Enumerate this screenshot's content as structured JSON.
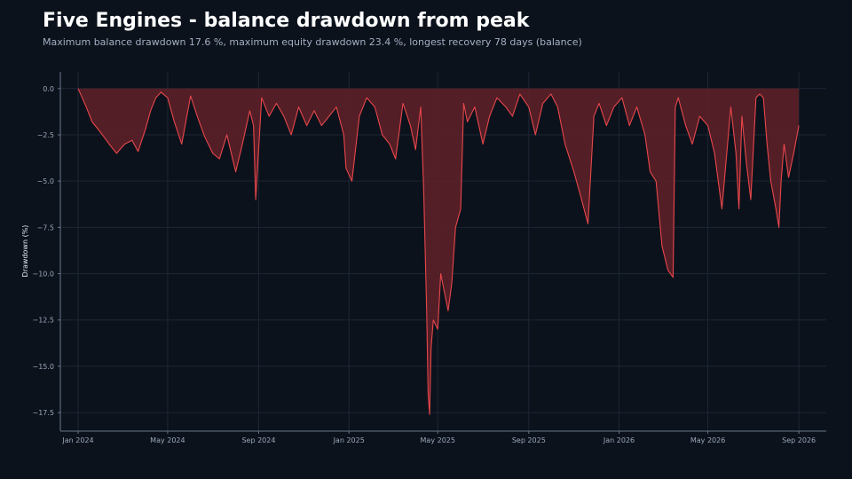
{
  "title": "Five Engines - balance drawdown from peak",
  "subtitle": "Maximum balance drawdown 17.6 %, maximum equity drawdown 23.4 %, longest recovery 78 days (balance)",
  "colors": {
    "background": "#0b121c",
    "line": "#e8474a",
    "fill": "#5c2029",
    "grid": "#1d2633",
    "axis": "#6b7687"
  },
  "chart_data": {
    "type": "area",
    "title": "Five Engines - balance drawdown from peak",
    "xlabel": "",
    "ylabel": "Drawdown (%)",
    "ylim": [
      -18.5,
      0.9
    ],
    "xlim": [
      "2023-12-08",
      "2026-10-08"
    ],
    "grid": true,
    "yticks": [
      0.0,
      -2.5,
      -5.0,
      -7.5,
      -10.0,
      -12.5,
      -15.0,
      -17.5
    ],
    "ytick_labels": [
      "0.0",
      "−2.5",
      "−5.0",
      "−7.5",
      "−10.0",
      "−12.5",
      "−15.0",
      "−17.5"
    ],
    "xticks": [
      "2024-01-01",
      "2024-05-01",
      "2024-09-01",
      "2025-01-01",
      "2025-05-01",
      "2025-09-01",
      "2026-01-01",
      "2026-05-01",
      "2026-09-01"
    ],
    "xtick_labels": [
      "Jan 2024",
      "May 2024",
      "Sep 2024",
      "Jan 2025",
      "May 2025",
      "Sep 2025",
      "Jan 2026",
      "May 2026",
      "Sep 2026"
    ],
    "series": [
      {
        "x": [
          "2024-01-01",
          "2024-01-12",
          "2024-01-20",
          "2024-02-01",
          "2024-02-12",
          "2024-02-22",
          "2024-03-04",
          "2024-03-14",
          "2024-03-22",
          "2024-04-01",
          "2024-04-08",
          "2024-04-15",
          "2024-04-22",
          "2024-05-01",
          "2024-05-10",
          "2024-05-20",
          "2024-06-01",
          "2024-06-10",
          "2024-06-20",
          "2024-07-01",
          "2024-07-10",
          "2024-07-20",
          "2024-08-01",
          "2024-08-10",
          "2024-08-20",
          "2024-08-25",
          "2024-08-28",
          "2024-09-05",
          "2024-09-15",
          "2024-09-25",
          "2024-10-05",
          "2024-10-15",
          "2024-10-25",
          "2024-11-05",
          "2024-11-15",
          "2024-11-25",
          "2024-12-05",
          "2024-12-15",
          "2024-12-25",
          "2024-12-28",
          "2025-01-05",
          "2025-01-15",
          "2025-01-25",
          "2025-02-05",
          "2025-02-15",
          "2025-02-25",
          "2025-03-05",
          "2025-03-15",
          "2025-03-25",
          "2025-04-01",
          "2025-04-08",
          "2025-04-12",
          "2025-04-16",
          "2025-04-18",
          "2025-04-20",
          "2025-04-22",
          "2025-04-25",
          "2025-05-01",
          "2025-05-05",
          "2025-05-10",
          "2025-05-15",
          "2025-05-20",
          "2025-05-25",
          "2025-06-01",
          "2025-06-05",
          "2025-06-10",
          "2025-06-20",
          "2025-07-01",
          "2025-07-10",
          "2025-07-20",
          "2025-08-01",
          "2025-08-10",
          "2025-08-20",
          "2025-09-01",
          "2025-09-10",
          "2025-09-20",
          "2025-10-01",
          "2025-10-10",
          "2025-10-20",
          "2025-11-01",
          "2025-11-10",
          "2025-11-20",
          "2025-11-28",
          "2025-12-05",
          "2025-12-15",
          "2025-12-25",
          "2026-01-05",
          "2026-01-15",
          "2026-01-25",
          "2026-02-05",
          "2026-02-12",
          "2026-02-20",
          "2026-02-28",
          "2026-03-08",
          "2026-03-15",
          "2026-03-18",
          "2026-03-22",
          "2026-04-01",
          "2026-04-10",
          "2026-04-20",
          "2026-05-01",
          "2026-05-10",
          "2026-05-20",
          "2026-06-01",
          "2026-06-08",
          "2026-06-12",
          "2026-06-16",
          "2026-06-22",
          "2026-06-28",
          "2026-07-05",
          "2026-07-10",
          "2026-07-15",
          "2026-07-20",
          "2026-07-25",
          "2026-08-01",
          "2026-08-05",
          "2026-08-08",
          "2026-08-12",
          "2026-08-18",
          "2026-08-25",
          "2026-09-01"
        ],
        "y": [
          0.0,
          -1.0,
          -1.8,
          -2.4,
          -3.0,
          -3.5,
          -3.0,
          -2.8,
          -3.4,
          -2.2,
          -1.2,
          -0.5,
          -0.2,
          -0.5,
          -1.8,
          -3.0,
          -0.4,
          -1.5,
          -2.6,
          -3.5,
          -3.8,
          -2.5,
          -4.5,
          -3.0,
          -1.2,
          -2.0,
          -6.0,
          -0.5,
          -1.5,
          -0.8,
          -1.5,
          -2.5,
          -1.0,
          -2.0,
          -1.2,
          -2.0,
          -1.5,
          -1.0,
          -2.5,
          -4.3,
          -5.0,
          -1.5,
          -0.5,
          -1.0,
          -2.5,
          -3.0,
          -3.8,
          -0.8,
          -2.0,
          -3.3,
          -1.0,
          -5.5,
          -12.0,
          -16.5,
          -17.6,
          -14.0,
          -12.5,
          -13.0,
          -10.0,
          -11.0,
          -12.0,
          -10.5,
          -7.5,
          -6.5,
          -0.8,
          -1.8,
          -1.0,
          -3.0,
          -1.5,
          -0.5,
          -1.0,
          -1.5,
          -0.3,
          -1.0,
          -2.5,
          -0.8,
          -0.3,
          -1.0,
          -3.0,
          -4.5,
          -5.8,
          -7.3,
          -1.5,
          -0.8,
          -2.0,
          -1.0,
          -0.5,
          -2.0,
          -1.0,
          -2.5,
          -4.5,
          -5.0,
          -8.5,
          -9.8,
          -10.2,
          -1.0,
          -0.5,
          -2.0,
          -3.0,
          -1.5,
          -2.0,
          -3.5,
          -6.5,
          -1.0,
          -3.5,
          -6.5,
          -1.5,
          -4.0,
          -6.0,
          -0.5,
          -0.3,
          -0.5,
          -3.0,
          -5.0,
          -6.5,
          -7.5,
          -5.0,
          -3.0,
          -4.8,
          -3.5,
          -2.0
        ]
      }
    ]
  }
}
